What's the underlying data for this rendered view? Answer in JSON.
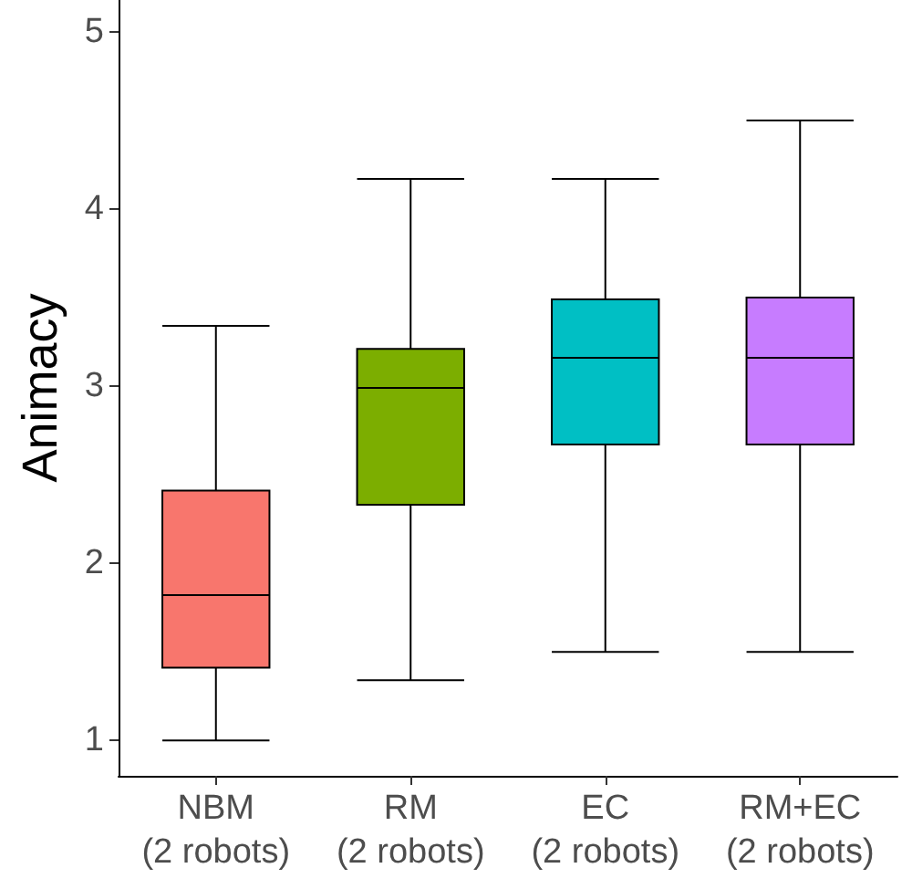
{
  "chart_data": {
    "type": "box",
    "ylabel": "Animacy",
    "categories": [
      "NBM\n(2 robots)",
      "RM\n(2 robots)",
      "EC\n(2 robots)",
      "RM+EC\n(2 robots)"
    ],
    "colors": [
      "#f8766d",
      "#7cae00",
      "#00bfc4",
      "#c77cff"
    ],
    "boxes": [
      {
        "low": 1,
        "q1": 1.41,
        "median": 1.82,
        "q3": 2.41,
        "high": 3.34
      },
      {
        "low": 1.34,
        "q1": 2.33,
        "median": 2.99,
        "q3": 3.21,
        "high": 4.17
      },
      {
        "low": 1.5,
        "q1": 2.67,
        "median": 3.16,
        "q3": 3.49,
        "high": 4.17
      },
      {
        "low": 1.5,
        "q1": 2.67,
        "median": 3.16,
        "q3": 3.5,
        "high": 4.5
      }
    ],
    "ylim": [
      0.8,
      5.18
    ],
    "yticks": [
      1,
      2,
      3,
      4,
      5
    ]
  }
}
